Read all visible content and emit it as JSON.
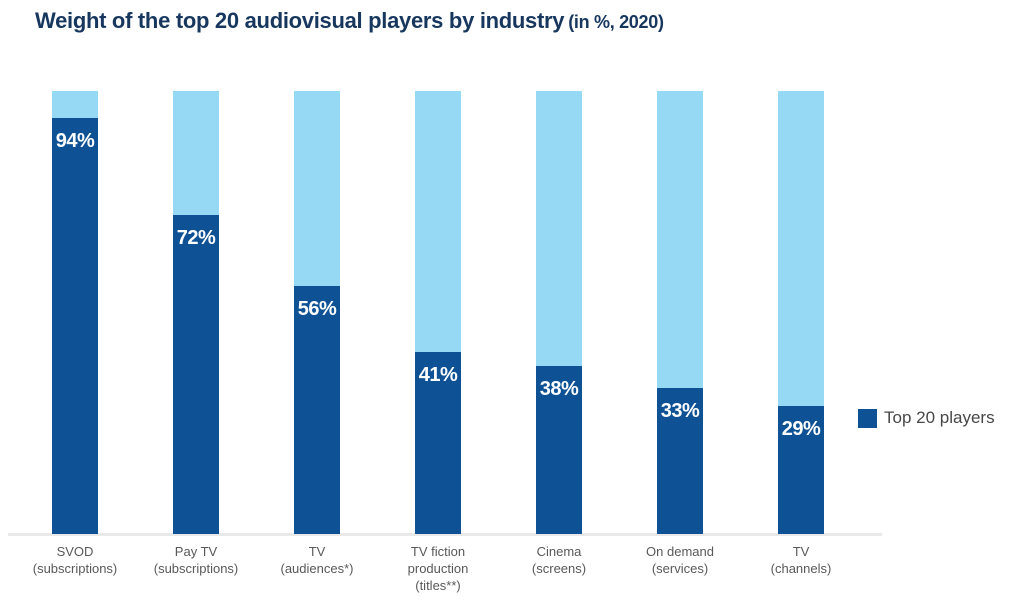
{
  "title": {
    "main": "Weight of the top 20 audiovisual players by industry",
    "suffix": "(in %, 2020)"
  },
  "legend": {
    "label": "Top 20 players"
  },
  "colors": {
    "top20_bar": "#0e5295",
    "remainder_bar": "#95d9f4",
    "title_text": "#17375e",
    "axis_line": "#e9e9e9",
    "category_text": "#595959",
    "value_text": "#ffffff",
    "legend_text": "#474747"
  },
  "chart_data": {
    "type": "bar",
    "stacked": true,
    "title": "Weight of the top 20 audiovisual players by industry (in %, 2020)",
    "categories": [
      "SVOD\n(subscriptions)",
      "Pay TV\n(subscriptions)",
      "TV\n(audiences*)",
      "TV fiction\nproduction\n(titles**)",
      "Cinema\n(screens)",
      "On demand\n(services)",
      "TV\n(channels)"
    ],
    "series": [
      {
        "name": "Top 20 players",
        "color": "#0e5295",
        "values": [
          94,
          72,
          56,
          41,
          38,
          33,
          29
        ]
      },
      {
        "name": "",
        "color": "#95d9f4",
        "values": [
          6,
          28,
          44,
          59,
          62,
          67,
          71
        ]
      }
    ],
    "value_labels": [
      "94%",
      "72%",
      "56%",
      "41%",
      "38%",
      "33%",
      "29%"
    ],
    "ylim": [
      0,
      100
    ],
    "grid": false,
    "legend_position": "right"
  }
}
